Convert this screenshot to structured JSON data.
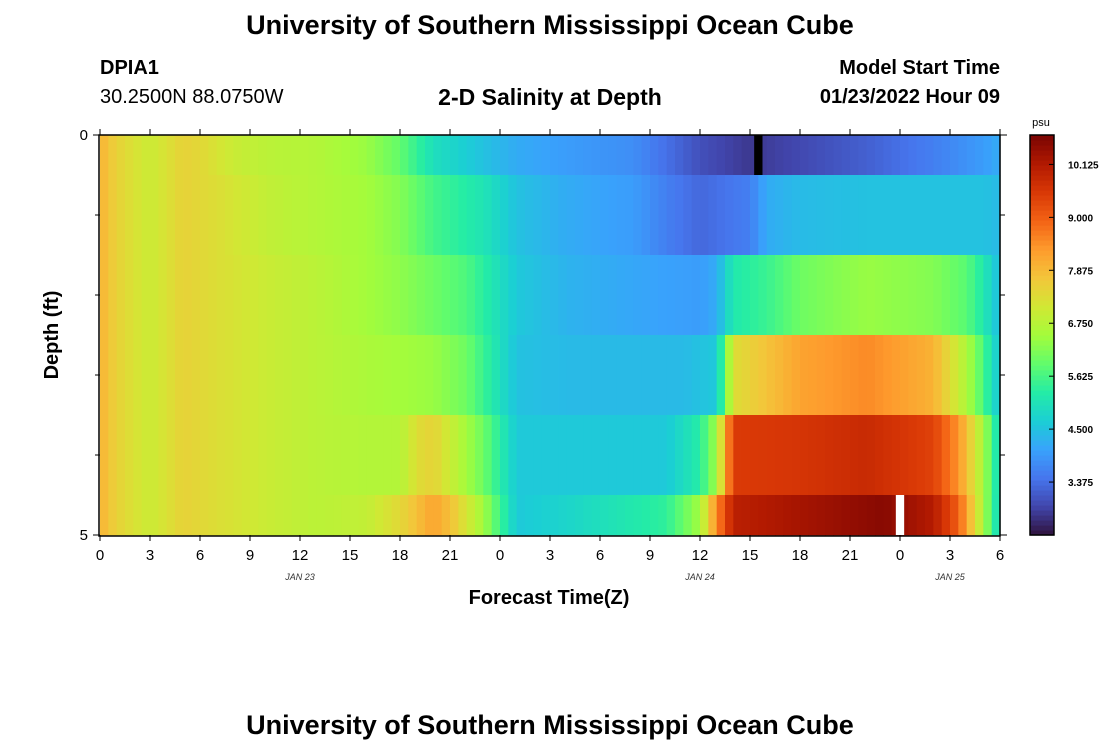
{
  "page": {
    "title_top": "University of Southern Mississippi Ocean Cube",
    "title_bottom": "University of Southern Mississippi Ocean Cube",
    "station_id": "DPIA1",
    "station_coords": "30.2500N  88.0750W",
    "model_start_label": "Model Start Time",
    "model_start_value": "01/23/2022 Hour 09",
    "plot_title": "2-D Salinity at Depth"
  },
  "colors": {
    "colormap": [
      "#30123b",
      "#4145ab",
      "#4675ed",
      "#39a2fc",
      "#1bcfd4",
      "#24eca6",
      "#61fc6c",
      "#a4fc3b",
      "#d1e834",
      "#f3c63a",
      "#fe9b2d",
      "#f36315",
      "#d93806",
      "#b11901",
      "#7a0403"
    ],
    "missing_black": "#000000",
    "missing_white": "#ffffff"
  },
  "chart_data": {
    "type": "heatmap",
    "title": "2-D Salinity at Depth",
    "xlabel": "Forecast Time(Z)",
    "ylabel": "Depth (ft)",
    "x_tick_labels": [
      "0",
      "3",
      "6",
      "9",
      "12",
      "15",
      "18",
      "21",
      "0",
      "3",
      "6",
      "9",
      "12",
      "15",
      "18",
      "21",
      "0",
      "3",
      "6"
    ],
    "x_range_hours": [
      0,
      54
    ],
    "date_labels": [
      {
        "text": "JAN 23",
        "hour": 12
      },
      {
        "text": "JAN 24",
        "hour": 36
      },
      {
        "text": "JAN 25",
        "hour": 51
      }
    ],
    "y_tick_labels": [
      "0",
      "5"
    ],
    "y_range_ft": [
      0,
      5
    ],
    "y_minor_ticks_ft": [
      1,
      2,
      3,
      4
    ],
    "depth_rows_ft": [
      0,
      1,
      2,
      3,
      4,
      5
    ],
    "colorbar": {
      "unit": "psu",
      "min": 2.25,
      "max": 10.75,
      "tick_values": [
        10.125,
        9.0,
        7.875,
        6.75,
        5.625,
        4.5,
        3.375
      ],
      "tick_labels": [
        "10.125",
        "9.000",
        "7.875",
        "6.750",
        "5.625",
        "4.500",
        "3.375"
      ]
    },
    "row_profiles": [
      [
        [
          0,
          8.0
        ],
        [
          1,
          7.5
        ],
        [
          3,
          7.0
        ],
        [
          5,
          7.5
        ],
        [
          6,
          7.4
        ],
        [
          8,
          7.0
        ],
        [
          10,
          6.8
        ],
        [
          13,
          6.7
        ],
        [
          16,
          6.4
        ],
        [
          18,
          5.9
        ],
        [
          20,
          5.0
        ],
        [
          23,
          4.5
        ],
        [
          25,
          4.2
        ],
        [
          28,
          4.0
        ],
        [
          32,
          3.8
        ],
        [
          34,
          3.4
        ],
        [
          36,
          3.0
        ],
        [
          39,
          2.7
        ],
        [
          42,
          2.9
        ],
        [
          46,
          3.2
        ],
        [
          50,
          3.6
        ],
        [
          53,
          4.0
        ],
        [
          54,
          4.2
        ]
      ],
      [
        [
          0,
          8.0
        ],
        [
          1,
          7.5
        ],
        [
          3,
          7.0
        ],
        [
          5,
          7.5
        ],
        [
          7,
          7.3
        ],
        [
          10,
          6.9
        ],
        [
          13,
          6.7
        ],
        [
          16,
          6.5
        ],
        [
          18,
          6.2
        ],
        [
          20,
          5.6
        ],
        [
          23,
          5.1
        ],
        [
          25,
          4.5
        ],
        [
          28,
          4.2
        ],
        [
          32,
          4.0
        ],
        [
          34,
          3.6
        ],
        [
          36,
          3.3
        ],
        [
          39,
          3.6
        ],
        [
          40,
          4.2
        ],
        [
          42,
          4.4
        ],
        [
          46,
          4.5
        ],
        [
          50,
          4.5
        ],
        [
          53,
          4.5
        ],
        [
          54,
          4.4
        ]
      ],
      [
        [
          0,
          8.0
        ],
        [
          1,
          7.5
        ],
        [
          3,
          7.0
        ],
        [
          5,
          7.5
        ],
        [
          7,
          7.3
        ],
        [
          10,
          7.0
        ],
        [
          13,
          6.8
        ],
        [
          16,
          6.5
        ],
        [
          18,
          6.3
        ],
        [
          20,
          6.0
        ],
        [
          22,
          5.7
        ],
        [
          25,
          4.6
        ],
        [
          28,
          4.3
        ],
        [
          33,
          4.1
        ],
        [
          36,
          4.0
        ],
        [
          37,
          4.2
        ],
        [
          38,
          5.2
        ],
        [
          40,
          5.5
        ],
        [
          42,
          6.0
        ],
        [
          46,
          6.4
        ],
        [
          50,
          6.2
        ],
        [
          52,
          5.8
        ],
        [
          53,
          5.2
        ],
        [
          54,
          4.4
        ]
      ],
      [
        [
          0,
          8.0
        ],
        [
          1,
          7.5
        ],
        [
          3,
          7.0
        ],
        [
          5,
          7.5
        ],
        [
          7,
          7.3
        ],
        [
          10,
          7.0
        ],
        [
          13,
          6.8
        ],
        [
          16,
          6.6
        ],
        [
          18,
          6.5
        ],
        [
          20,
          6.4
        ],
        [
          22,
          6.0
        ],
        [
          25,
          4.5
        ],
        [
          28,
          4.4
        ],
        [
          35,
          4.4
        ],
        [
          37,
          4.6
        ],
        [
          37.6,
          6.2
        ],
        [
          38,
          7.3
        ],
        [
          42,
          8.2
        ],
        [
          46,
          8.5
        ],
        [
          50,
          8.0
        ],
        [
          51.5,
          7.0
        ],
        [
          52.5,
          6.2
        ],
        [
          54,
          4.5
        ]
      ],
      [
        [
          0,
          8.0
        ],
        [
          1,
          7.5
        ],
        [
          3,
          7.0
        ],
        [
          5,
          7.5
        ],
        [
          7,
          7.3
        ],
        [
          10,
          7.0
        ],
        [
          13,
          6.8
        ],
        [
          16,
          6.7
        ],
        [
          18,
          6.7
        ],
        [
          19,
          7.3
        ],
        [
          20,
          7.5
        ],
        [
          21,
          7.0
        ],
        [
          23,
          6.0
        ],
        [
          25,
          4.6
        ],
        [
          28,
          4.6
        ],
        [
          34,
          4.6
        ],
        [
          36,
          5.3
        ],
        [
          37,
          6.5
        ],
        [
          38,
          9.5
        ],
        [
          42,
          9.6
        ],
        [
          46,
          9.8
        ],
        [
          50,
          9.4
        ],
        [
          51.5,
          8.4
        ],
        [
          52.5,
          7.2
        ],
        [
          53.5,
          5.8
        ],
        [
          54,
          4.7
        ]
      ],
      [
        [
          0,
          8.0
        ],
        [
          1,
          7.5
        ],
        [
          3,
          7.0
        ],
        [
          5,
          7.5
        ],
        [
          7,
          7.3
        ],
        [
          10,
          7.0
        ],
        [
          13,
          6.8
        ],
        [
          16,
          6.9
        ],
        [
          18,
          7.4
        ],
        [
          19,
          7.8
        ],
        [
          20,
          8.2
        ],
        [
          21,
          7.8
        ],
        [
          23,
          6.5
        ],
        [
          25,
          4.6
        ],
        [
          28,
          4.8
        ],
        [
          31,
          5.1
        ],
        [
          34,
          5.4
        ],
        [
          36,
          6.5
        ],
        [
          37,
          8.5
        ],
        [
          38,
          10.0
        ],
        [
          44,
          10.4
        ],
        [
          47,
          10.6
        ],
        [
          50,
          10.1
        ],
        [
          51.5,
          9.0
        ],
        [
          52.5,
          7.4
        ],
        [
          53.5,
          5.7
        ],
        [
          54,
          4.7
        ]
      ]
    ],
    "missing_cells": [
      {
        "row": 0,
        "hour": 39.5,
        "color": "black"
      },
      {
        "row": 5,
        "hour": 48,
        "color": "white"
      }
    ]
  }
}
